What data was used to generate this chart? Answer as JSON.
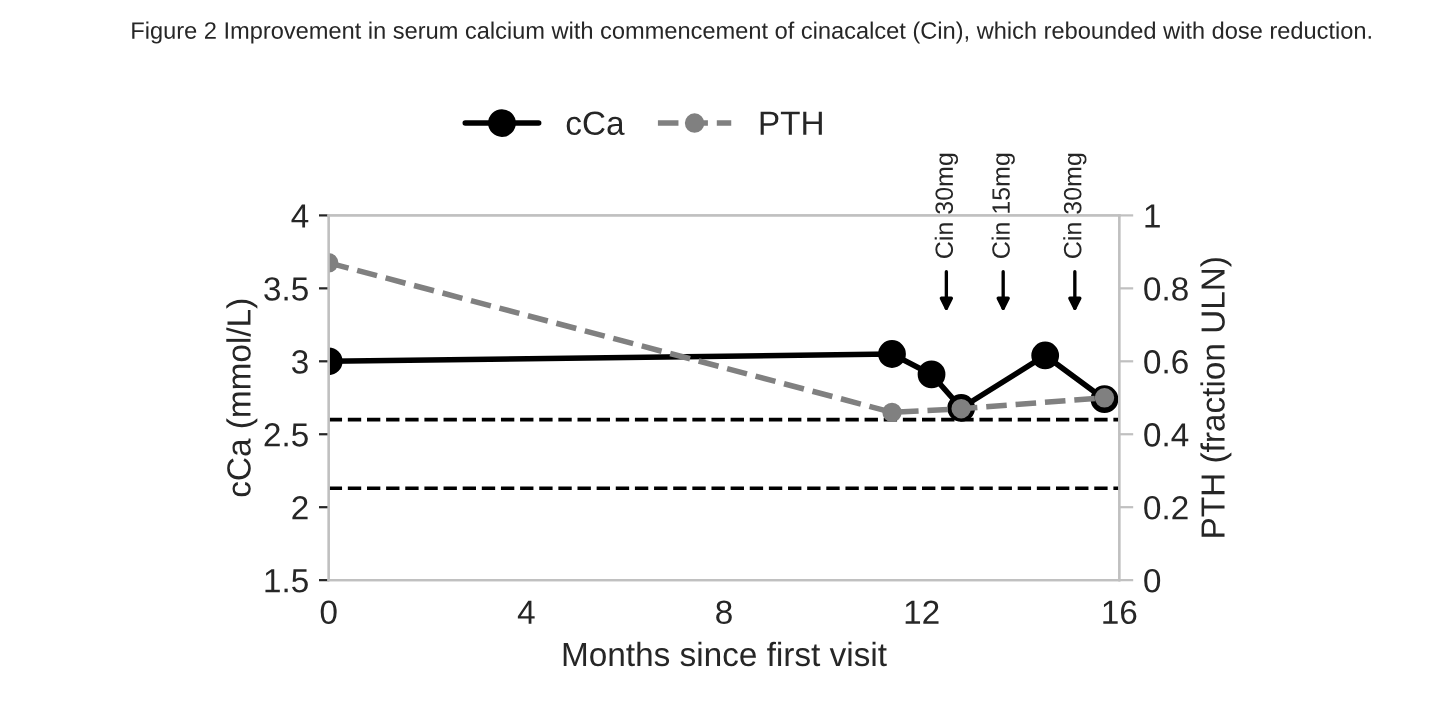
{
  "chart_data": {
    "type": "line",
    "title": "Figure 2 Improvement in serum calcium with commencement of cinacalcet (Cin), which rebounded with dose reduction.",
    "xlabel": "Months since first visit",
    "ylabel": "cCa (mmol/L)",
    "y2label": "PTH (fraction ULN)",
    "series": [
      {
        "name": "cCa",
        "color": "#000000",
        "x": [
          0,
          11.4,
          12.2,
          12.8,
          14.5,
          15.7
        ],
        "values": [
          3.0,
          3.05,
          2.91,
          2.68,
          3.04,
          2.74
        ],
        "line_style": "solid",
        "marker": "circle"
      },
      {
        "name": "PTH",
        "color": "#808080",
        "x": [
          0,
          11.4,
          12.8,
          15.7
        ],
        "values": [
          0.87,
          0.46,
          0.47,
          0.5
        ],
        "axis": "y2",
        "line_style": "dashed",
        "marker": "circle"
      }
    ],
    "xlim": [
      0,
      16
    ],
    "xticks": [
      0,
      4,
      8,
      12,
      16
    ],
    "ylim": [
      1.5,
      4
    ],
    "yticks": [
      1.5,
      2,
      2.5,
      3,
      3.5,
      4
    ],
    "y2lim": [
      0,
      1
    ],
    "y2ticks": [
      0,
      0.2,
      0.4,
      0.6,
      0.8,
      1
    ],
    "ref_lines": [
      {
        "axis": "y",
        "value": 2.6,
        "color": "#000000",
        "line_style": "dashed"
      },
      {
        "axis": "y",
        "value": 2.13,
        "color": "#000000",
        "line_style": "dashed"
      }
    ],
    "annotations": [
      "Cin 30mg",
      "Cin 15mg",
      "Cin 30mg"
    ],
    "legend": "top",
    "grid": false
  }
}
